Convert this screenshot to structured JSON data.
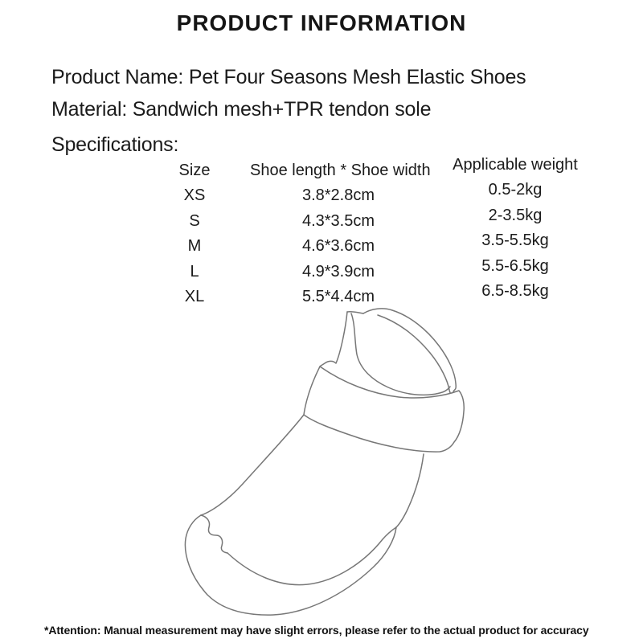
{
  "title": "PRODUCT INFORMATION",
  "product": {
    "name_line": "Product Name: Pet Four Seasons Mesh Elastic Shoes",
    "material_line": "Material: Sandwich mesh+TPR tendon sole",
    "spec_label": "Specifications:"
  },
  "spec_table": {
    "columns": [
      "Size",
      "Shoe length * Shoe width",
      "Applicable weight"
    ],
    "rows": [
      {
        "size": "XS",
        "dims": "3.8*2.8cm",
        "weight": "0.5-2kg"
      },
      {
        "size": "S",
        "dims": "4.3*3.5cm",
        "weight": "2-3.5kg"
      },
      {
        "size": "M",
        "dims": "4.6*3.6cm",
        "weight": "3.5-5.5kg"
      },
      {
        "size": "L",
        "dims": "4.9*3.9cm",
        "weight": "5.5-6.5kg"
      },
      {
        "size": "XL",
        "dims": "5.5*4.4cm",
        "weight": "6.5-8.5kg"
      }
    ]
  },
  "illustration": {
    "name": "pet-shoe-line-drawing",
    "stroke_color": "#777777"
  },
  "footer": {
    "attention": "*Attention: Manual measurement may have slight errors, please refer to the actual product for accuracy"
  },
  "colors": {
    "text": "#1b1b1b",
    "background": "#ffffff"
  }
}
